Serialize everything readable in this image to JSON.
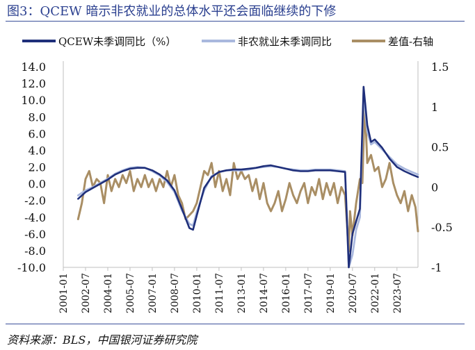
{
  "title": "图3：QCEW 暗示非农就业的总体水平还会面临继续的下修",
  "source": "资料来源：BLS，中国银河证券研究院",
  "colors": {
    "qcew": "#1f2f7a",
    "nonfarm": "#a9b8de",
    "diff": "#a98e64",
    "title": "#2a3f8f"
  },
  "chart_data": {
    "type": "line",
    "legend_position": "top",
    "grid": false,
    "x_tick_labels": [
      "2001-01",
      "2002-07",
      "2004-01",
      "2005-07",
      "2007-01",
      "2008-07",
      "2010-01",
      "2011-07",
      "2013-01",
      "2014-07",
      "2016-01",
      "2017-07",
      "2019-01",
      "2020-07",
      "2022-01",
      "2023-07"
    ],
    "x_range": [
      "2001-01",
      "2024-12"
    ],
    "y_left": {
      "ylim": [
        -10,
        14
      ],
      "ticks": [
        "14.0",
        "12.0",
        "10.0",
        "8.0",
        "6.0",
        "4.0",
        "2.0",
        "0.0",
        "-2.0",
        "-4.0",
        "-6.0",
        "-8.0",
        "-10.0"
      ]
    },
    "y_right": {
      "ylim": [
        -1,
        1.5
      ],
      "ticks": [
        "1.5",
        "1",
        "0.5",
        "0",
        "-0.5",
        "-1"
      ]
    },
    "series": [
      {
        "name": "QCEW未季调同比（%）",
        "axis": "left",
        "color": "#1f2f7a",
        "points": [
          [
            "2002-01",
            -1.8
          ],
          [
            "2002-07",
            -1.0
          ],
          [
            "2003-01",
            -0.5
          ],
          [
            "2003-07",
            0.0
          ],
          [
            "2004-01",
            0.5
          ],
          [
            "2004-07",
            1.1
          ],
          [
            "2005-01",
            1.5
          ],
          [
            "2005-07",
            1.8
          ],
          [
            "2006-01",
            1.9
          ],
          [
            "2006-07",
            1.9
          ],
          [
            "2007-01",
            1.6
          ],
          [
            "2007-07",
            1.1
          ],
          [
            "2008-01",
            0.4
          ],
          [
            "2008-07",
            -0.8
          ],
          [
            "2009-01",
            -3.0
          ],
          [
            "2009-07",
            -5.3
          ],
          [
            "2009-10",
            -5.5
          ],
          [
            "2010-01",
            -3.8
          ],
          [
            "2010-07",
            -0.5
          ],
          [
            "2011-01",
            0.8
          ],
          [
            "2011-07",
            1.4
          ],
          [
            "2012-01",
            1.6
          ],
          [
            "2012-07",
            1.7
          ],
          [
            "2013-01",
            1.7
          ],
          [
            "2013-07",
            1.8
          ],
          [
            "2014-01",
            1.9
          ],
          [
            "2014-07",
            2.1
          ],
          [
            "2015-01",
            2.2
          ],
          [
            "2015-07",
            2.0
          ],
          [
            "2016-01",
            1.8
          ],
          [
            "2016-07",
            1.6
          ],
          [
            "2017-01",
            1.5
          ],
          [
            "2017-07",
            1.5
          ],
          [
            "2018-01",
            1.6
          ],
          [
            "2018-07",
            1.6
          ],
          [
            "2019-01",
            1.6
          ],
          [
            "2019-07",
            1.5
          ],
          [
            "2020-01",
            1.4
          ],
          [
            "2020-04",
            -12.5
          ],
          [
            "2020-07",
            -6.0
          ],
          [
            "2020-10",
            -4.5
          ],
          [
            "2021-01",
            -3.0
          ],
          [
            "2021-04",
            11.6
          ],
          [
            "2021-07",
            7.0
          ],
          [
            "2021-10",
            5.0
          ],
          [
            "2022-01",
            5.3
          ],
          [
            "2022-07",
            4.3
          ],
          [
            "2023-01",
            3.0
          ],
          [
            "2023-07",
            2.0
          ],
          [
            "2024-01",
            1.5
          ],
          [
            "2024-07",
            1.1
          ],
          [
            "2024-12",
            0.8
          ]
        ]
      },
      {
        "name": "非农就业未季调同比",
        "axis": "left",
        "color": "#a9b8de",
        "points": [
          [
            "2002-01",
            -1.4
          ],
          [
            "2002-07",
            -0.8
          ],
          [
            "2003-01",
            -0.4
          ],
          [
            "2003-07",
            0.1
          ],
          [
            "2004-01",
            0.6
          ],
          [
            "2004-07",
            1.2
          ],
          [
            "2005-01",
            1.6
          ],
          [
            "2005-07",
            1.9
          ],
          [
            "2006-01",
            2.0
          ],
          [
            "2006-07",
            1.9
          ],
          [
            "2007-01",
            1.5
          ],
          [
            "2007-07",
            1.0
          ],
          [
            "2008-01",
            0.2
          ],
          [
            "2008-07",
            -1.0
          ],
          [
            "2009-01",
            -3.2
          ],
          [
            "2009-07",
            -4.8
          ],
          [
            "2009-10",
            -5.0
          ],
          [
            "2010-01",
            -3.4
          ],
          [
            "2010-07",
            -0.8
          ],
          [
            "2011-01",
            0.9
          ],
          [
            "2011-07",
            1.4
          ],
          [
            "2012-01",
            1.6
          ],
          [
            "2012-07",
            1.6
          ],
          [
            "2013-01",
            1.6
          ],
          [
            "2013-07",
            1.7
          ],
          [
            "2014-01",
            1.9
          ],
          [
            "2014-07",
            2.0
          ],
          [
            "2015-01",
            2.1
          ],
          [
            "2015-07",
            2.0
          ],
          [
            "2016-01",
            1.8
          ],
          [
            "2016-07",
            1.7
          ],
          [
            "2017-01",
            1.6
          ],
          [
            "2017-07",
            1.6
          ],
          [
            "2018-01",
            1.7
          ],
          [
            "2018-07",
            1.7
          ],
          [
            "2019-01",
            1.7
          ],
          [
            "2019-07",
            1.6
          ],
          [
            "2020-01",
            1.5
          ],
          [
            "2020-04",
            -13.0
          ],
          [
            "2020-07",
            -8.5
          ],
          [
            "2020-10",
            -5.5
          ],
          [
            "2021-01",
            -4.0
          ],
          [
            "2021-04",
            10.8
          ],
          [
            "2021-07",
            6.2
          ],
          [
            "2021-10",
            4.7
          ],
          [
            "2022-01",
            5.0
          ],
          [
            "2022-07",
            4.1
          ],
          [
            "2023-01",
            3.2
          ],
          [
            "2023-07",
            2.3
          ],
          [
            "2024-01",
            1.8
          ],
          [
            "2024-07",
            1.4
          ],
          [
            "2024-12",
            1.1
          ]
        ]
      },
      {
        "name": "差值-右轴",
        "axis": "right",
        "color": "#a98e64",
        "points": [
          [
            "2002-01",
            -0.4
          ],
          [
            "2002-04",
            -0.2
          ],
          [
            "2002-07",
            0.1
          ],
          [
            "2002-10",
            0.2
          ],
          [
            "2003-01",
            0.0
          ],
          [
            "2003-04",
            0.1
          ],
          [
            "2003-07",
            0.05
          ],
          [
            "2003-10",
            -0.2
          ],
          [
            "2004-01",
            0.15
          ],
          [
            "2004-04",
            -0.05
          ],
          [
            "2004-07",
            0.1
          ],
          [
            "2004-10",
            0.0
          ],
          [
            "2005-01",
            0.15
          ],
          [
            "2005-04",
            0.05
          ],
          [
            "2005-07",
            0.2
          ],
          [
            "2005-10",
            -0.05
          ],
          [
            "2006-01",
            0.1
          ],
          [
            "2006-04",
            0.0
          ],
          [
            "2006-07",
            0.15
          ],
          [
            "2006-10",
            0.0
          ],
          [
            "2007-01",
            0.1
          ],
          [
            "2007-04",
            -0.05
          ],
          [
            "2007-07",
            0.1
          ],
          [
            "2007-10",
            0.0
          ],
          [
            "2008-01",
            0.2
          ],
          [
            "2008-04",
            0.0
          ],
          [
            "2008-07",
            0.15
          ],
          [
            "2008-10",
            -0.1
          ],
          [
            "2009-01",
            -0.2
          ],
          [
            "2009-04",
            -0.4
          ],
          [
            "2009-07",
            -0.35
          ],
          [
            "2009-10",
            -0.3
          ],
          [
            "2010-01",
            -0.2
          ],
          [
            "2010-04",
            0.0
          ],
          [
            "2010-07",
            0.2
          ],
          [
            "2010-10",
            0.15
          ],
          [
            "2011-01",
            0.3
          ],
          [
            "2011-04",
            0.0
          ],
          [
            "2011-07",
            0.2
          ],
          [
            "2011-10",
            -0.05
          ],
          [
            "2012-01",
            0.1
          ],
          [
            "2012-04",
            -0.1
          ],
          [
            "2012-07",
            0.3
          ],
          [
            "2012-10",
            0.1
          ],
          [
            "2013-01",
            0.2
          ],
          [
            "2013-04",
            0.1
          ],
          [
            "2013-07",
            0.15
          ],
          [
            "2013-10",
            -0.05
          ],
          [
            "2014-01",
            0.1
          ],
          [
            "2014-04",
            -0.15
          ],
          [
            "2014-07",
            0.05
          ],
          [
            "2014-10",
            -0.2
          ],
          [
            "2015-01",
            -0.3
          ],
          [
            "2015-04",
            -0.2
          ],
          [
            "2015-07",
            -0.05
          ],
          [
            "2015-10",
            -0.3
          ],
          [
            "2016-01",
            -0.15
          ],
          [
            "2016-04",
            0.05
          ],
          [
            "2016-07",
            -0.1
          ],
          [
            "2016-10",
            -0.2
          ],
          [
            "2017-01",
            -0.05
          ],
          [
            "2017-04",
            0.05
          ],
          [
            "2017-07",
            -0.2
          ],
          [
            "2017-10",
            0.0
          ],
          [
            "2018-01",
            -0.1
          ],
          [
            "2018-04",
            0.1
          ],
          [
            "2018-07",
            -0.15
          ],
          [
            "2018-10",
            0.05
          ],
          [
            "2019-01",
            -0.1
          ],
          [
            "2019-04",
            0.05
          ],
          [
            "2019-07",
            -0.2
          ],
          [
            "2019-10",
            0.0
          ],
          [
            "2020-01",
            -0.1
          ],
          [
            "2020-04",
            -0.8
          ],
          [
            "2020-05",
            -0.3
          ],
          [
            "2020-07",
            -0.6
          ],
          [
            "2020-10",
            -0.2
          ],
          [
            "2021-01",
            0.1
          ],
          [
            "2021-03",
            0.05
          ],
          [
            "2021-05",
            1.05
          ],
          [
            "2021-07",
            0.3
          ],
          [
            "2021-10",
            0.4
          ],
          [
            "2022-01",
            0.2
          ],
          [
            "2022-04",
            0.25
          ],
          [
            "2022-07",
            0.0
          ],
          [
            "2022-10",
            0.1
          ],
          [
            "2023-01",
            0.3
          ],
          [
            "2023-04",
            0.05
          ],
          [
            "2023-07",
            -0.1
          ],
          [
            "2023-10",
            -0.2
          ],
          [
            "2024-01",
            -0.05
          ],
          [
            "2024-04",
            -0.3
          ],
          [
            "2024-07",
            -0.1
          ],
          [
            "2024-10",
            -0.25
          ],
          [
            "2024-12",
            -0.55
          ]
        ]
      }
    ]
  }
}
